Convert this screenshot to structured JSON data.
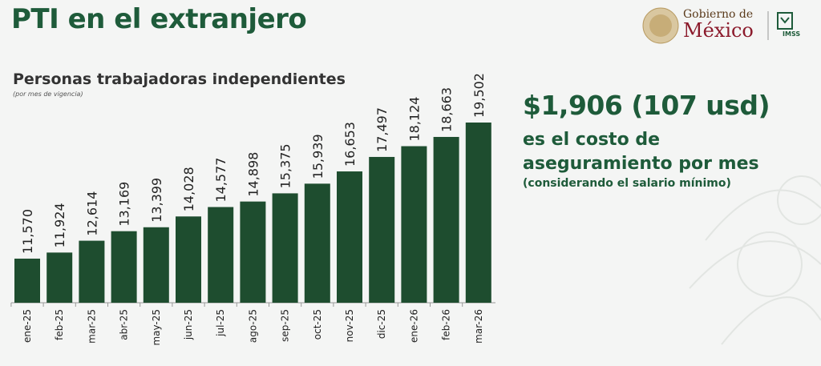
{
  "header": {
    "title": "PTI en el extranjero",
    "logo_top": "Gobierno de",
    "logo_main": "México",
    "logo_imss": "IMSS"
  },
  "side": {
    "price": "$1,906 (107 usd)",
    "description": "es el costo de aseguramiento por mes",
    "note": "(considerando el salario mínimo)"
  },
  "colors": {
    "bar": "#1e4d2f",
    "accent": "#1e5b3a",
    "brand_red": "#8b1a2b"
  },
  "chart_data": {
    "type": "bar",
    "title": "Personas trabajadoras independientes",
    "subtitle": "(por mes de vigencia)",
    "categories": [
      "ene-25",
      "feb-25",
      "mar-25",
      "abr-25",
      "may-25",
      "jun-25",
      "jul-25",
      "ago-25",
      "sep-25",
      "oct-25",
      "nov-25",
      "dic-25",
      "ene-26",
      "feb-26",
      "mar-26"
    ],
    "values": [
      11570,
      11924,
      12614,
      13169,
      13399,
      14028,
      14577,
      14898,
      15375,
      15939,
      16653,
      17497,
      18124,
      18663,
      19502
    ],
    "value_labels": [
      "11,570",
      "11,924",
      "12,614",
      "13,169",
      "13,399",
      "14,028",
      "14,577",
      "14,898",
      "15,375",
      "15,939",
      "16,653",
      "17,497",
      "18,124",
      "18,663",
      "19,502"
    ],
    "ylim": [
      9000,
      19502
    ],
    "grid": false,
    "legend": "none"
  }
}
